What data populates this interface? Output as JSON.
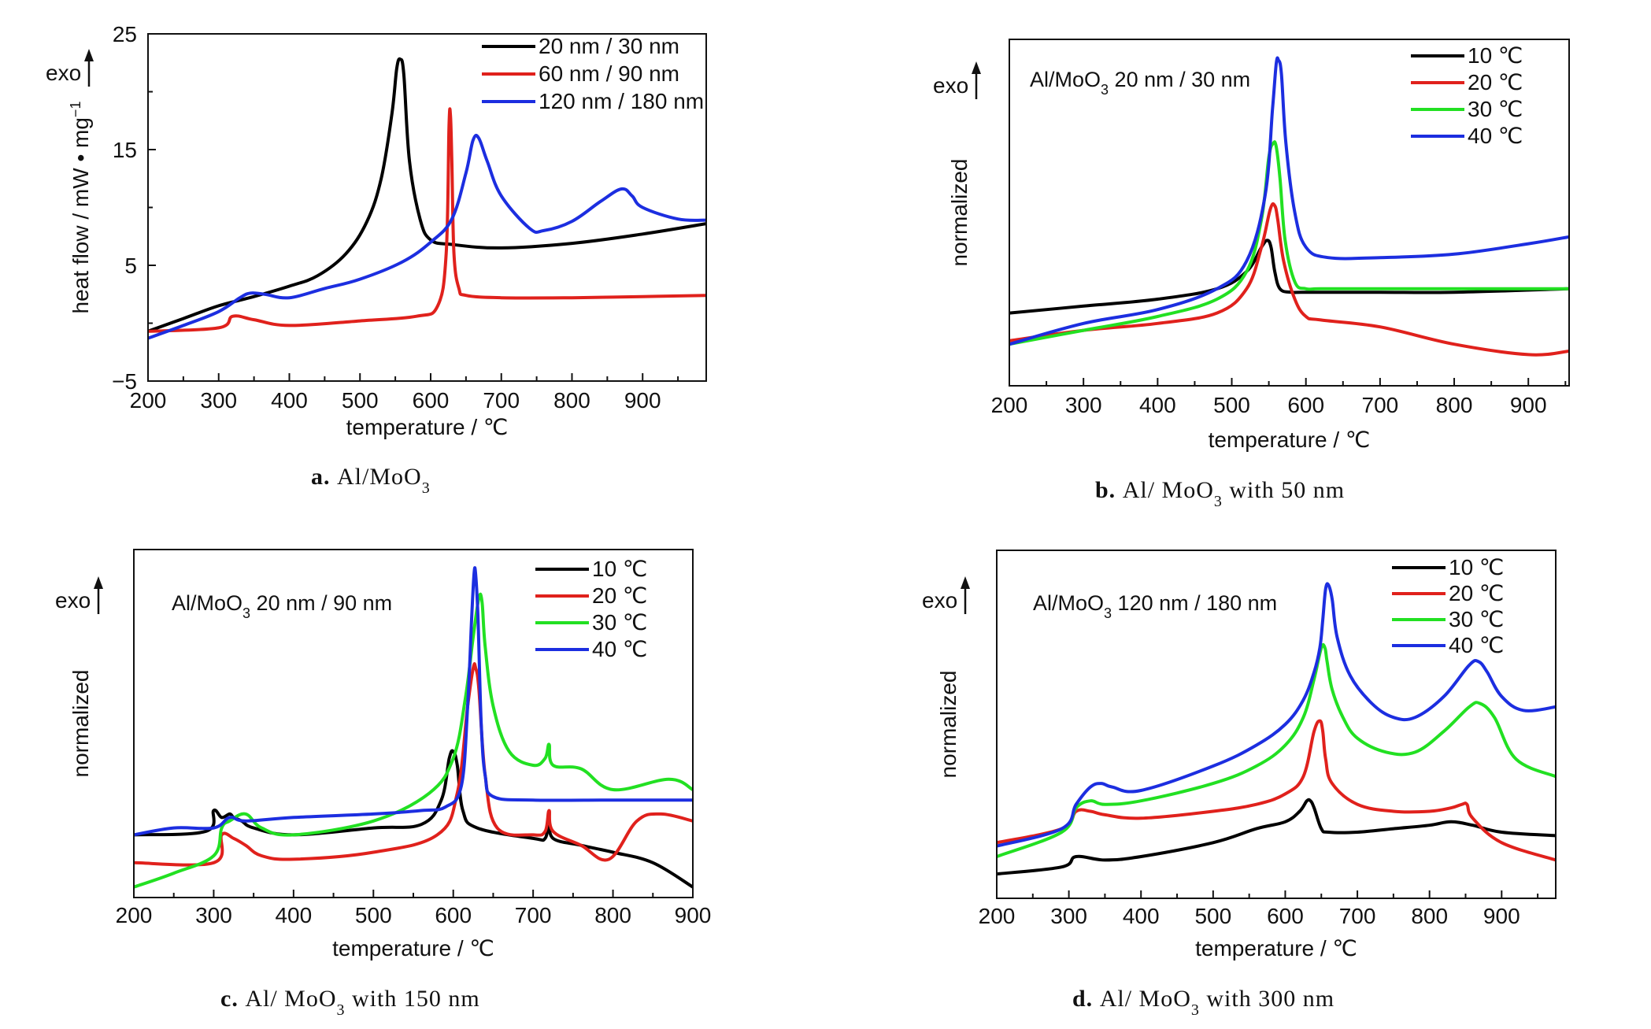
{
  "chart_data": [
    {
      "id": "a",
      "type": "line",
      "caption_letter": "a.",
      "caption_text": "Al/MoO",
      "caption_sub": "3",
      "caption_tail": "",
      "ylabel": "heat flow / mW • mg",
      "ylabel_sup": "−1",
      "xlabel": "temperature / ℃",
      "exo_label": "exo",
      "xlim": [
        200,
        990
      ],
      "ylim": [
        -5,
        25
      ],
      "xticks": [
        200,
        300,
        400,
        500,
        600,
        700,
        800,
        900
      ],
      "xtick_labels": [
        "200",
        "300",
        "400",
        "500",
        "600",
        "700",
        "800",
        "900"
      ],
      "yticks": [
        -5,
        5,
        15,
        25
      ],
      "ytick_labels": [
        "−5",
        "5",
        "15",
        "25"
      ],
      "ytick_minor": [
        0,
        10,
        20
      ],
      "legend_position": "top-right",
      "series": [
        {
          "name": "20 nm / 30 nm",
          "color": "#000000",
          "x": [
            200,
            250,
            300,
            350,
            400,
            440,
            480,
            510,
            530,
            545,
            552,
            557,
            562,
            570,
            585,
            600,
            630,
            700,
            800,
            900,
            990
          ],
          "y": [
            -0.7,
            0.4,
            1.5,
            2.3,
            3.2,
            4.1,
            6.0,
            8.8,
            12.5,
            18,
            22,
            22.8,
            21.5,
            14,
            9,
            7.2,
            6.8,
            6.5,
            6.9,
            7.7,
            8.6
          ]
        },
        {
          "name": "60 nm / 90 nm",
          "color": "#e0211c",
          "x": [
            200,
            300,
            320,
            350,
            400,
            500,
            580,
            610,
            622,
            626,
            628,
            630,
            633,
            640,
            650,
            700,
            800,
            900,
            990
          ],
          "y": [
            -0.7,
            -0.4,
            0.6,
            0.3,
            -0.2,
            0.2,
            0.6,
            1.5,
            6,
            17,
            18,
            14,
            6,
            3,
            2.4,
            2.2,
            2.2,
            2.3,
            2.4
          ]
        },
        {
          "name": "120 nm / 180 nm",
          "color": "#1c2ee0",
          "x": [
            200,
            250,
            300,
            330,
            345,
            365,
            400,
            450,
            500,
            560,
            600,
            630,
            650,
            660,
            668,
            680,
            700,
            740,
            760,
            800,
            840,
            870,
            885,
            900,
            950,
            990
          ],
          "y": [
            -1.3,
            -0.2,
            1.0,
            2.2,
            2.6,
            2.5,
            2.2,
            3.0,
            3.8,
            5.3,
            7,
            9,
            13,
            15.8,
            16,
            14,
            11,
            8.2,
            8.0,
            8.8,
            10.5,
            11.6,
            11,
            10,
            9.0,
            8.9
          ]
        }
      ]
    },
    {
      "id": "b",
      "type": "line",
      "caption_letter": "b.",
      "caption_text": "Al/ MoO",
      "caption_sub": "3",
      "caption_tail": " with 50 nm",
      "ylabel": "normalized",
      "xlabel": "temperature / ℃",
      "exo_label": "exo",
      "inset_label": "Al/MoO",
      "inset_sub": "3",
      "inset_tail": " 20 nm / 30 nm",
      "xlim": [
        200,
        955
      ],
      "ylim": [
        0,
        100
      ],
      "xticks": [
        200,
        300,
        400,
        500,
        600,
        700,
        800,
        900
      ],
      "xtick_labels": [
        "200",
        "300",
        "400",
        "500",
        "600",
        "700",
        "800",
        "900"
      ],
      "legend_position": "top-right",
      "series": [
        {
          "name": "10 ℃",
          "color": "#000000",
          "x": [
            200,
            300,
            400,
            480,
            520,
            540,
            548,
            553,
            558,
            565,
            580,
            600,
            700,
            800,
            955
          ],
          "y": [
            21,
            23,
            25,
            28,
            33,
            40,
            42,
            40,
            33,
            28,
            27,
            27,
            27,
            27,
            28
          ]
        },
        {
          "name": "20 ℃",
          "color": "#e0211c",
          "x": [
            200,
            300,
            400,
            480,
            520,
            540,
            552,
            558,
            562,
            570,
            585,
            600,
            620,
            700,
            800,
            900,
            955
          ],
          "y": [
            13,
            16,
            18,
            21,
            28,
            40,
            51,
            52,
            48,
            36,
            25,
            20,
            19,
            17,
            12,
            9,
            10
          ]
        },
        {
          "name": "30 ℃",
          "color": "#22e022",
          "x": [
            200,
            300,
            400,
            480,
            520,
            540,
            550,
            556,
            560,
            565,
            572,
            585,
            600,
            620,
            700,
            800,
            955
          ],
          "y": [
            12,
            16,
            20,
            25,
            33,
            48,
            66,
            70,
            69,
            60,
            42,
            30,
            28,
            28,
            28,
            28,
            28
          ]
        },
        {
          "name": "40 ℃",
          "color": "#1c2ee0",
          "x": [
            200,
            300,
            400,
            480,
            520,
            545,
            555,
            560,
            563,
            567,
            573,
            585,
            600,
            630,
            700,
            800,
            900,
            955
          ],
          "y": [
            12,
            18,
            22,
            28,
            36,
            55,
            80,
            93,
            94,
            90,
            70,
            50,
            40,
            37,
            37,
            38,
            41,
            43
          ]
        }
      ]
    },
    {
      "id": "c",
      "type": "line",
      "caption_letter": "c.",
      "caption_text": "Al/ MoO",
      "caption_sub": "3",
      "caption_tail": " with 150 nm",
      "ylabel": "normalized",
      "xlabel": "temperature / ℃",
      "exo_label": "exo",
      "inset_label": "Al/MoO",
      "inset_sub": "3",
      "inset_tail": " 20 nm / 90 nm",
      "xlim": [
        200,
        900
      ],
      "ylim": [
        0,
        100
      ],
      "xticks": [
        200,
        300,
        400,
        500,
        600,
        700,
        800,
        900
      ],
      "xtick_labels": [
        "200",
        "300",
        "400",
        "500",
        "600",
        "700",
        "800",
        "900"
      ],
      "legend_position": "top-right",
      "series": [
        {
          "name": "10 ℃",
          "color": "#000000",
          "x": [
            200,
            290,
            300,
            310,
            320,
            325,
            335,
            350,
            400,
            500,
            560,
            585,
            595,
            600,
            605,
            612,
            630,
            700,
            715,
            720,
            725,
            760,
            800,
            850,
            900
          ],
          "y": [
            18,
            19,
            25,
            23,
            24,
            23,
            22,
            20,
            18,
            20,
            21,
            28,
            40,
            42,
            38,
            25,
            20,
            17,
            17,
            22,
            17,
            15,
            13,
            10,
            3
          ]
        },
        {
          "name": "20 ℃",
          "color": "#e0211c",
          "x": [
            200,
            300,
            310,
            325,
            340,
            360,
            400,
            500,
            580,
            605,
            618,
            625,
            628,
            632,
            640,
            655,
            700,
            715,
            720,
            725,
            760,
            795,
            830,
            860,
            900
          ],
          "y": [
            10,
            10,
            18,
            17,
            15,
            12,
            11,
            13,
            18,
            30,
            55,
            66,
            66,
            60,
            35,
            20,
            18,
            19,
            25,
            19,
            15,
            11,
            22,
            24,
            22
          ]
        },
        {
          "name": "30 ℃",
          "color": "#22e022",
          "x": [
            200,
            250,
            300,
            310,
            320,
            340,
            360,
            400,
            500,
            570,
            600,
            615,
            625,
            632,
            636,
            640,
            650,
            670,
            700,
            715,
            720,
            725,
            760,
            800,
            870,
            900
          ],
          "y": [
            3,
            7,
            12,
            20,
            22,
            24,
            20,
            18,
            22,
            30,
            40,
            57,
            75,
            86,
            85,
            72,
            55,
            42,
            38,
            40,
            44,
            38,
            37,
            31,
            34,
            31
          ]
        },
        {
          "name": "40 ℃",
          "color": "#1c2ee0",
          "x": [
            200,
            250,
            300,
            320,
            340,
            400,
            500,
            560,
            590,
            610,
            618,
            623,
            626,
            628,
            631,
            635,
            640,
            650,
            700,
            800,
            900
          ],
          "y": [
            18,
            20,
            20,
            23,
            22,
            23,
            24,
            25,
            26,
            32,
            55,
            80,
            93,
            93,
            80,
            50,
            35,
            29,
            28,
            28,
            28
          ]
        }
      ]
    },
    {
      "id": "d",
      "type": "line",
      "caption_letter": "d.",
      "caption_text": "Al/ MoO",
      "caption_sub": "3",
      "caption_tail": " with 300 nm",
      "ylabel": "normalized",
      "xlabel": "temperature / ℃",
      "exo_label": "exo",
      "inset_label": "Al/MoO",
      "inset_sub": "3",
      "inset_tail": " 120 nm / 180 nm",
      "xlim": [
        200,
        975
      ],
      "ylim": [
        0,
        100
      ],
      "xticks": [
        200,
        300,
        400,
        500,
        600,
        700,
        800,
        900
      ],
      "xtick_labels": [
        "200",
        "300",
        "400",
        "500",
        "600",
        "700",
        "800",
        "900"
      ],
      "legend_position": "top-right",
      "series": [
        {
          "name": "10 ℃",
          "color": "#000000",
          "x": [
            200,
            290,
            310,
            350,
            400,
            500,
            560,
            600,
            620,
            630,
            635,
            640,
            650,
            660,
            700,
            750,
            800,
            830,
            860,
            900,
            975
          ],
          "y": [
            7,
            9,
            12,
            11,
            12,
            16,
            20,
            22,
            25,
            28,
            28,
            26,
            20,
            19,
            19,
            20,
            21,
            22,
            21,
            19,
            18
          ]
        },
        {
          "name": "20 ℃",
          "color": "#e0211c",
          "x": [
            200,
            290,
            310,
            330,
            350,
            400,
            500,
            560,
            600,
            625,
            640,
            648,
            652,
            656,
            665,
            700,
            750,
            800,
            830,
            845,
            852,
            860,
            900,
            975
          ],
          "y": [
            16,
            20,
            25,
            25,
            24,
            23,
            25,
            27,
            30,
            35,
            48,
            51,
            48,
            40,
            33,
            27,
            25,
            25,
            26,
            27,
            27,
            23,
            16,
            11
          ]
        },
        {
          "name": "30 ℃",
          "color": "#22e022",
          "x": [
            200,
            290,
            310,
            330,
            350,
            400,
            500,
            560,
            600,
            625,
            640,
            650,
            655,
            658,
            665,
            680,
            700,
            740,
            780,
            820,
            855,
            870,
            890,
            920,
            975
          ],
          "y": [
            12,
            19,
            26,
            28,
            27,
            28,
            33,
            38,
            44,
            52,
            63,
            72,
            72,
            68,
            60,
            52,
            46,
            42,
            42,
            48,
            55,
            56,
            52,
            40,
            35
          ]
        },
        {
          "name": "40 ℃",
          "color": "#1c2ee0",
          "x": [
            200,
            290,
            310,
            330,
            345,
            360,
            400,
            500,
            560,
            600,
            625,
            640,
            648,
            652,
            656,
            660,
            665,
            672,
            690,
            720,
            750,
            780,
            820,
            855,
            868,
            880,
            900,
            930,
            975
          ],
          "y": [
            15,
            20,
            27,
            32,
            33,
            32,
            31,
            38,
            44,
            50,
            57,
            65,
            72,
            80,
            89,
            90,
            86,
            75,
            64,
            56,
            52,
            52,
            58,
            67,
            68,
            65,
            58,
            54,
            55
          ]
        }
      ]
    }
  ]
}
